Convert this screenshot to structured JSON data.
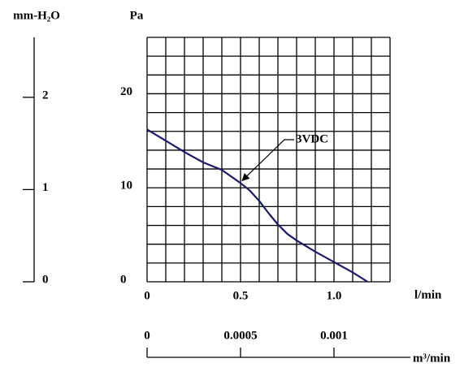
{
  "chart_data": {
    "type": "line",
    "ylabel": "Pa",
    "y2label": "mm-H₂O",
    "xlabel": "l/min",
    "x2label": "m³/min",
    "x": [
      0,
      0.1,
      0.2,
      0.3,
      0.4,
      0.5,
      0.55,
      0.6,
      0.65,
      0.7,
      0.75,
      0.8,
      0.9,
      1.0,
      1.1,
      1.18
    ],
    "series": [
      {
        "name": "3VDC",
        "color": "#1a1a6e",
        "values": [
          16.2,
          15.0,
          13.8,
          12.7,
          11.9,
          10.5,
          9.7,
          8.6,
          7.3,
          6.1,
          5.1,
          4.4,
          3.2,
          2.1,
          1.0,
          0
        ]
      }
    ],
    "annotation_point": 5,
    "xlim": [
      0,
      1.3
    ],
    "xticks": [
      0,
      0.5,
      {
        "value": 1.0,
        "label": "1.0"
      }
    ],
    "xgrid": [
      0,
      0.1,
      0.2,
      0.3,
      0.4,
      0.5,
      0.6,
      0.7,
      0.8,
      0.9,
      1.0,
      1.1,
      1.2,
      1.3
    ],
    "ylim": [
      0,
      26
    ],
    "yticks": [
      0,
      10,
      20
    ],
    "ygrid": [
      0,
      2,
      4,
      6,
      8,
      10,
      12,
      14,
      16,
      18,
      20,
      22,
      24,
      26
    ],
    "y2lim": [
      0,
      2.65
    ],
    "y2ticks": [
      0,
      1,
      2
    ],
    "x2lim": [
      0,
      0.0013
    ],
    "x2ticks": [
      0,
      0.0005,
      0.001
    ],
    "grid": true
  }
}
